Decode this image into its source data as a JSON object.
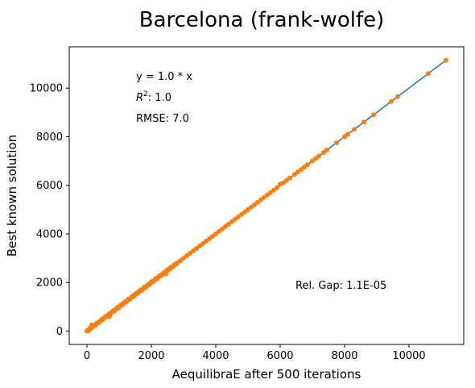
{
  "chart_data": {
    "type": "scatter",
    "title": "Barcelona (frank-wolfe)",
    "xlabel": "AequilibraE after 500 iterations",
    "ylabel": "Best known solution",
    "xlim": [
      -550,
      11700
    ],
    "ylim": [
      -550,
      11700
    ],
    "xticks": [
      0,
      2000,
      4000,
      6000,
      8000,
      10000
    ],
    "yticks": [
      0,
      2000,
      4000,
      6000,
      8000,
      10000
    ],
    "grid": false,
    "annotations": {
      "equation": "y = 1.0 * x",
      "r2_prefix": "R",
      "r2_sup": "2",
      "r2_rest": ":  1.0",
      "rmse": "RMSE: 7.0",
      "rel_gap": "Rel. Gap: 1.1E-05"
    },
    "series": [
      {
        "type": "line",
        "color": "#1f77b4",
        "x": [
          0,
          11150
        ],
        "y": [
          0,
          11150
        ]
      },
      {
        "type": "scatter",
        "color": "#ff7f0e",
        "x": [
          0,
          20,
          50,
          100,
          150,
          200,
          250,
          300,
          400,
          500,
          600,
          700,
          800,
          900,
          1000,
          1100,
          1200,
          1300,
          1400,
          1500,
          1600,
          1700,
          1800,
          1900,
          2000,
          2100,
          2200,
          2300,
          2400,
          2500,
          2600,
          2700,
          2800,
          2900,
          3000,
          3100,
          3200,
          3300,
          3400,
          3500,
          3600,
          3700,
          3800,
          3900,
          4000,
          4100,
          4200,
          4300,
          4400,
          4500,
          4600,
          4700,
          4800,
          4900,
          5000,
          5100,
          5200,
          5300,
          5400,
          5500,
          5600,
          5700,
          5800,
          5900,
          6000,
          6100,
          6200,
          6300,
          6450,
          6550,
          6650,
          6750,
          6850,
          7000,
          7100,
          7200,
          7350,
          7450,
          7750,
          8000,
          8100,
          8300,
          8600,
          8900,
          9450,
          9650,
          10600,
          11150,
          150,
          700,
          2450
        ],
        "y": [
          0,
          30,
          40,
          110,
          140,
          210,
          240,
          310,
          390,
          510,
          600,
          690,
          810,
          900,
          1000,
          1110,
          1190,
          1300,
          1400,
          1500,
          1600,
          1700,
          1810,
          1900,
          2000,
          2100,
          2200,
          2300,
          2400,
          2500,
          2600,
          2700,
          2800,
          2900,
          3000,
          3100,
          3200,
          3300,
          3400,
          3500,
          3600,
          3700,
          3800,
          3900,
          4000,
          4100,
          4200,
          4300,
          4400,
          4500,
          4600,
          4700,
          4800,
          4900,
          5000,
          5100,
          5200,
          5300,
          5400,
          5500,
          5600,
          5700,
          5800,
          5900,
          6050,
          6100,
          6200,
          6300,
          6450,
          6550,
          6650,
          6750,
          6850,
          7000,
          7100,
          7200,
          7350,
          7450,
          7750,
          8000,
          8100,
          8300,
          8600,
          8900,
          9450,
          9650,
          10600,
          11150,
          250,
          600,
          2350
        ]
      }
    ]
  }
}
